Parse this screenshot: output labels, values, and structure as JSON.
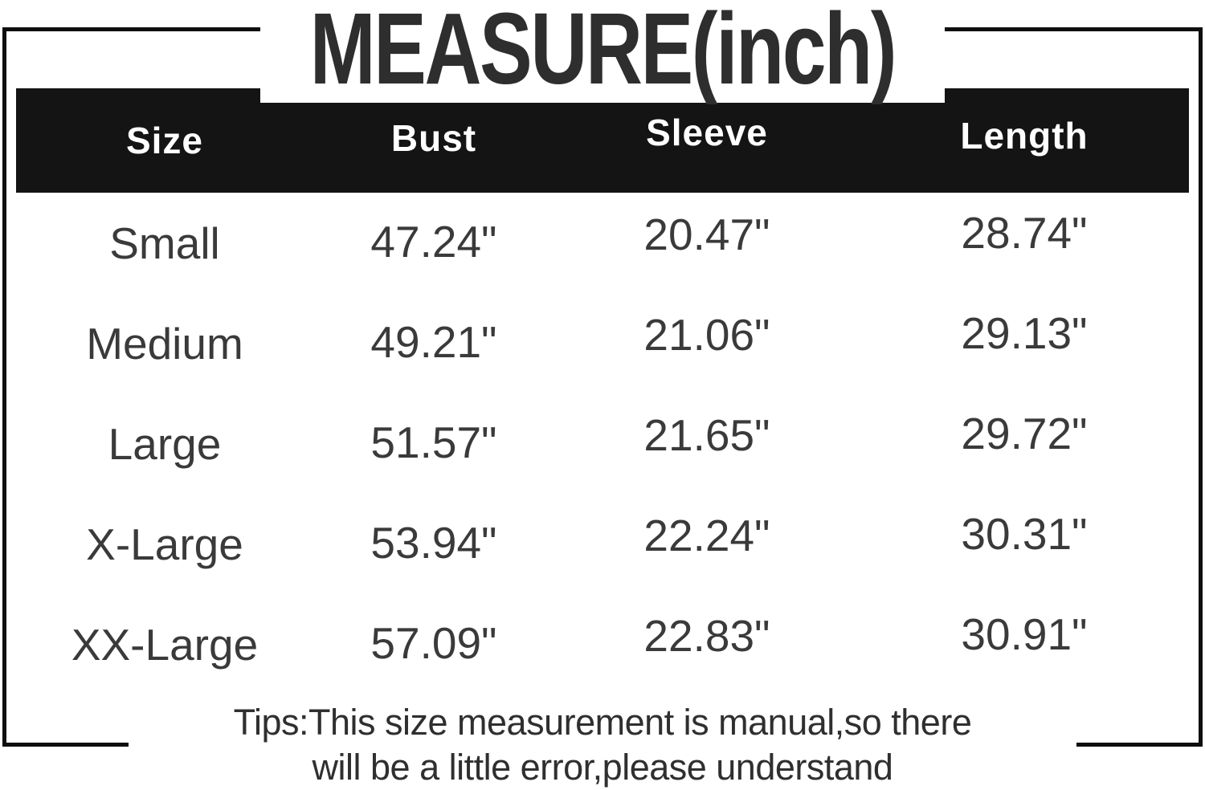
{
  "title": "MEASURE(inch)",
  "chart_data": {
    "type": "table",
    "title": "MEASURE(inch)",
    "unit": "inch",
    "columns": [
      "Size",
      "Bust",
      "Sleeve",
      "Length"
    ],
    "rows": [
      [
        "Small",
        "47.24\"",
        "20.47\"",
        "28.74\""
      ],
      [
        "Medium",
        "49.21\"",
        "21.06\"",
        "29.13\""
      ],
      [
        "Large",
        "51.57\"",
        "21.65\"",
        "29.72\""
      ],
      [
        "X-Large",
        "53.94\"",
        "22.24\"",
        "30.31\""
      ],
      [
        "XX-Large",
        "57.09\"",
        "22.83\"",
        "30.91\""
      ]
    ],
    "rows_numeric": {
      "bust": [
        47.24,
        49.21,
        51.57,
        53.94,
        57.09
      ],
      "sleeve": [
        20.47,
        21.06,
        21.65,
        22.24,
        22.83
      ],
      "length": [
        28.74,
        29.13,
        29.72,
        30.31,
        30.91
      ]
    }
  },
  "tips": {
    "line1": "Tips:This size measurement is manual,so there",
    "line2": "will be a little error,please understand"
  },
  "colors": {
    "header_bg": "#141414",
    "header_text": "#ffffff",
    "body_text": "#3a3a3a",
    "border": "#0f0f0f",
    "background": "#ffffff"
  }
}
